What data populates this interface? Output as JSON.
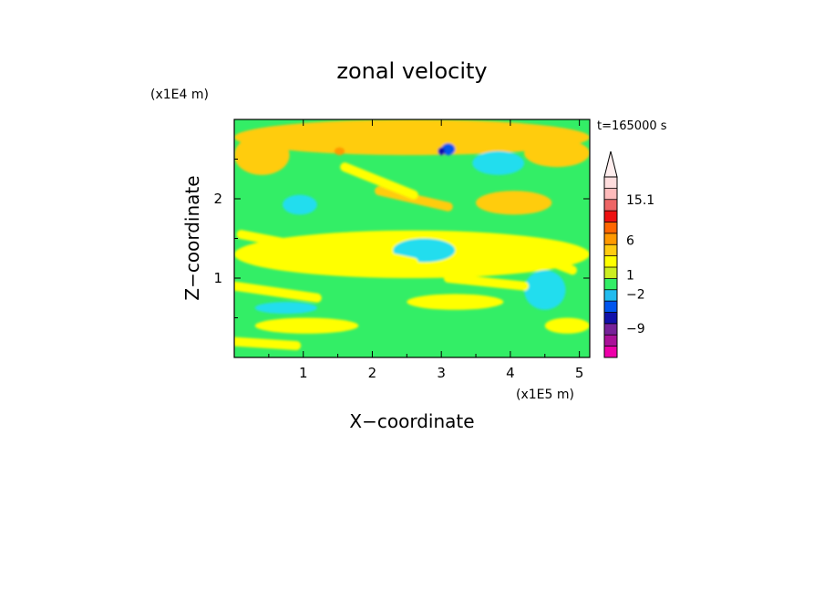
{
  "chart_data": {
    "type": "heatmap",
    "title": "zonal velocity",
    "xlabel": "X−coordinate",
    "ylabel": "Z−coordinate",
    "x_scale_label": "(x1E5 m)",
    "y_scale_label": "(x1E4 m)",
    "time_label": "t=165000 s",
    "xlim": [
      0,
      5.15
    ],
    "ylim": [
      0,
      3.0
    ],
    "x_ticks": [
      1,
      2,
      3,
      4,
      5
    ],
    "x_tick_labels": [
      "1",
      "2",
      "3",
      "4",
      "5"
    ],
    "y_ticks": [
      1,
      2
    ],
    "y_tick_labels": [
      "1",
      "2"
    ],
    "background_level_color": "#33ee66",
    "colorbar": {
      "labels": [
        {
          "value": 15.1,
          "text": "15.1"
        },
        {
          "value": 6,
          "text": "6"
        },
        {
          "value": 1,
          "text": "1"
        },
        {
          "value": -2,
          "text": "−2"
        },
        {
          "value": -9,
          "text": "−9"
        }
      ],
      "colors": [
        "#ee00aa",
        "#aa1199",
        "#772299",
        "#1111aa",
        "#0055ee",
        "#22bbee",
        "#33ee66",
        "#ccee22",
        "#ffff00",
        "#ffcc11",
        "#ff9900",
        "#ff6600",
        "#ee1111",
        "#ee6666",
        "#ffbbbb",
        "#ffdddd"
      ],
      "extend_max": true
    },
    "features": [
      {
        "level": "warm-yellow",
        "x": [
          0.0,
          0.8
        ],
        "z": [
          2.3,
          2.8
        ]
      },
      {
        "level": "warm-yellow",
        "x": [
          0.0,
          5.15
        ],
        "z": [
          2.55,
          3.0
        ]
      },
      {
        "level": "orange",
        "x": [
          1.45,
          1.6
        ],
        "z": [
          2.55,
          2.65
        ]
      },
      {
        "level": "cyan",
        "x": [
          3.45,
          4.2
        ],
        "z": [
          2.3,
          2.6
        ]
      },
      {
        "level": "blue",
        "x": [
          3.0,
          3.2
        ],
        "z": [
          2.55,
          2.7
        ]
      },
      {
        "level": "dark-blue",
        "x": [
          2.95,
          3.05
        ],
        "z": [
          2.55,
          2.65
        ]
      },
      {
        "level": "cyan",
        "x": [
          0.7,
          1.2
        ],
        "z": [
          1.8,
          2.05
        ]
      },
      {
        "level": "warm-yellow",
        "x": [
          4.2,
          5.15
        ],
        "z": [
          2.4,
          2.75
        ]
      },
      {
        "level": "warm-yellow",
        "x": [
          3.5,
          4.6
        ],
        "z": [
          1.8,
          2.1
        ]
      },
      {
        "level": "yellow",
        "x": [
          0.0,
          5.15
        ],
        "z": [
          1.0,
          1.6
        ]
      },
      {
        "level": "cyan",
        "x": [
          2.3,
          3.2
        ],
        "z": [
          1.2,
          1.5
        ]
      },
      {
        "level": "cyan",
        "x": [
          0.3,
          1.2
        ],
        "z": [
          0.55,
          0.7
        ]
      },
      {
        "level": "yellow",
        "x": [
          0.3,
          1.8
        ],
        "z": [
          0.3,
          0.5
        ]
      },
      {
        "level": "yellow",
        "x": [
          2.5,
          3.9
        ],
        "z": [
          0.6,
          0.8
        ]
      },
      {
        "level": "yellow",
        "x": [
          4.5,
          5.15
        ],
        "z": [
          0.3,
          0.5
        ]
      },
      {
        "level": "cyan",
        "x": [
          4.2,
          4.8
        ],
        "z": [
          0.6,
          1.1
        ]
      }
    ]
  }
}
